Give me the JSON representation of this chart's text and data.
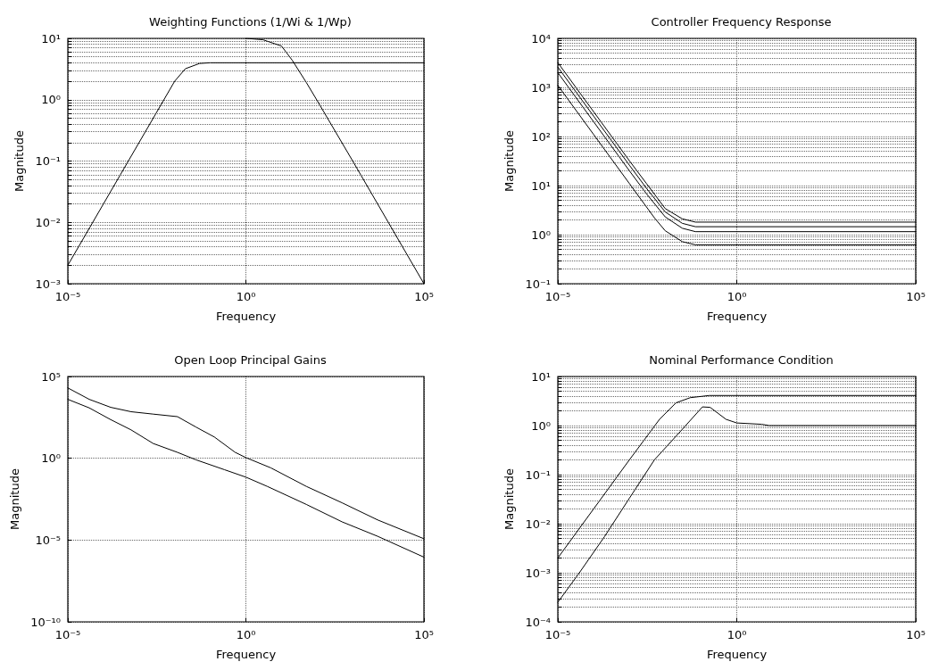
{
  "chart_data": [
    {
      "type": "line",
      "title": "Weighting Functions (1/Wi & 1/Wp)",
      "xlabel": "Frequency",
      "ylabel": "Magnitude",
      "log": "xy",
      "grid": true,
      "line_style": "solid",
      "xlim": [
        1e-05,
        100000.0
      ],
      "xticks": [
        {
          "value": 1e-05,
          "label": "10⁻⁵"
        },
        {
          "value": 1,
          "label": "10⁰"
        },
        {
          "value": 100000.0,
          "label": "10⁵"
        }
      ],
      "ylim": [
        0.001,
        10
      ],
      "yticks": [
        {
          "value": 0.001,
          "label": "10⁻³"
        },
        {
          "value": 0.01,
          "label": "10⁻²"
        },
        {
          "value": 0.1,
          "label": "10⁻¹"
        },
        {
          "value": 1,
          "label": "10⁰"
        },
        {
          "value": 10,
          "label": "10¹"
        }
      ],
      "series": [
        {
          "color": "#000000",
          "x": [
            1e-05,
            3e-05,
            0.0001,
            0.0003,
            0.001,
            0.003,
            0.01,
            0.02,
            0.05,
            0.1,
            100000.0
          ],
          "values": [
            0.002,
            0.006,
            0.02,
            0.06,
            0.2,
            0.6,
            2,
            3.2,
            3.9,
            4,
            4
          ]
        },
        {
          "color": "#000000",
          "x": [
            1,
            3,
            10,
            20,
            50,
            100,
            1000,
            10000,
            100000
          ],
          "values": [
            10,
            9.5,
            7.5,
            4.4,
            1.9,
            0.97,
            0.1,
            0.01,
            0.001
          ]
        }
      ]
    },
    {
      "type": "line",
      "title": "Controller Frequency Response",
      "xlabel": "Frequency",
      "ylabel": "Magnitude",
      "log": "xy",
      "grid": true,
      "line_style": "solid",
      "xlim": [
        1e-05,
        100000.0
      ],
      "xticks": [
        {
          "value": 1e-05,
          "label": "10⁻⁵"
        },
        {
          "value": 1,
          "label": "10⁰"
        },
        {
          "value": 100000.0,
          "label": "10⁵"
        }
      ],
      "ylim": [
        0.1,
        10000
      ],
      "yticks": [
        {
          "value": 0.1,
          "label": "10⁻¹"
        },
        {
          "value": 1,
          "label": "10⁰"
        },
        {
          "value": 10,
          "label": "10¹"
        },
        {
          "value": 100,
          "label": "10²"
        },
        {
          "value": 1000,
          "label": "10³"
        },
        {
          "value": 10000,
          "label": "10⁴"
        }
      ],
      "series": [
        {
          "color": "#000000",
          "x": [
            1e-05,
            0.0001,
            0.001,
            0.003,
            0.01,
            0.03,
            0.07,
            100000.0
          ],
          "values": [
            3200,
            320,
            32,
            11,
            3.4,
            2.1,
            1.8,
            1.8
          ]
        },
        {
          "color": "#000000",
          "x": [
            1e-05,
            0.0001,
            0.001,
            0.003,
            0.01,
            0.03,
            0.07,
            100000.0
          ],
          "values": [
            2600,
            260,
            26,
            8.8,
            2.9,
            1.7,
            1.45,
            1.45
          ]
        },
        {
          "color": "#000000",
          "x": [
            1e-05,
            0.0001,
            0.001,
            0.003,
            0.01,
            0.03,
            0.07,
            100000.0
          ],
          "values": [
            2000,
            200,
            20,
            6.8,
            2.3,
            1.35,
            1.15,
            1.15
          ]
        },
        {
          "color": "#000000",
          "x": [
            1e-05,
            0.0001,
            0.001,
            0.005,
            0.01,
            0.03,
            0.07,
            100000.0
          ],
          "values": [
            1100,
            110,
            11,
            2.2,
            1.2,
            0.72,
            0.62,
            0.62
          ]
        }
      ]
    },
    {
      "type": "line",
      "title": "Open Loop Principal Gains",
      "xlabel": "Frequency",
      "ylabel": "Magnitude",
      "log": "xy",
      "grid": true,
      "line_style": "solid",
      "xlim": [
        1e-05,
        100000.0
      ],
      "xticks": [
        {
          "value": 1e-05,
          "label": "10⁻⁵"
        },
        {
          "value": 1,
          "label": "10⁰"
        },
        {
          "value": 100000.0,
          "label": "10⁵"
        }
      ],
      "ylim": [
        1e-10,
        100000.0
      ],
      "yticks": [
        {
          "value": 1e-10,
          "label": "10⁻¹⁰"
        },
        {
          "value": 1e-05,
          "label": "10⁻⁵"
        },
        {
          "value": 1,
          "label": "10⁰"
        },
        {
          "value": 100000.0,
          "label": "10⁵"
        }
      ],
      "series": [
        {
          "color": "#000000",
          "x": [
            1e-05,
            4e-05,
            0.00016,
            0.0006,
            0.0025,
            0.012,
            0.04,
            0.13,
            0.5,
            1,
            5,
            50,
            500,
            5000,
            100000.0
          ],
          "values": [
            20000.0,
            4000,
            1300,
            700,
            500,
            350,
            80,
            20,
            2.3,
            1.1,
            0.26,
            0.019,
            0.0019,
            0.00017,
            1.2e-05
          ]
        },
        {
          "color": "#000000",
          "x": [
            1e-05,
            4e-05,
            0.00016,
            0.0006,
            0.0025,
            0.012,
            0.04,
            0.25,
            1,
            4,
            50,
            500,
            5000,
            100000.0
          ],
          "values": [
            4000,
            1200,
            230,
            54,
            8,
            2.3,
            0.8,
            0.2,
            0.07,
            0.019,
            0.0015,
            0.00013,
            1.7e-05,
            9e-07
          ]
        }
      ]
    },
    {
      "type": "line",
      "title": "Nominal Performance Condition",
      "xlabel": "Frequency",
      "ylabel": "Magnitude",
      "log": "xy",
      "grid": true,
      "line_style": "solid",
      "xlim": [
        1e-05,
        100000.0
      ],
      "xticks": [
        {
          "value": 1e-05,
          "label": "10⁻⁵"
        },
        {
          "value": 1,
          "label": "10⁰"
        },
        {
          "value": 100000.0,
          "label": "10⁵"
        }
      ],
      "ylim": [
        0.0001,
        10
      ],
      "yticks": [
        {
          "value": 0.0001,
          "label": "10⁻⁴"
        },
        {
          "value": 0.001,
          "label": "10⁻³"
        },
        {
          "value": 0.01,
          "label": "10⁻²"
        },
        {
          "value": 0.1,
          "label": "10⁻¹"
        },
        {
          "value": 1,
          "label": "10⁰"
        },
        {
          "value": 10,
          "label": "10¹"
        }
      ],
      "series": [
        {
          "color": "#000000",
          "x": [
            1e-05,
            0.0001,
            0.001,
            0.007,
            0.02,
            0.05,
            0.17,
            100000.0
          ],
          "values": [
            0.002,
            0.02,
            0.2,
            1.35,
            2.9,
            3.7,
            4.1,
            4.1
          ]
        },
        {
          "color": "#000000",
          "x": [
            1e-05,
            4e-05,
            0.0002,
            0.001,
            0.005,
            0.024,
            0.11,
            0.18,
            0.5,
            1,
            5,
            8,
            100000.0
          ],
          "values": [
            0.00025,
            0.001,
            0.0054,
            0.033,
            0.2,
            0.7,
            2.4,
            2.35,
            1.34,
            1.13,
            1.06,
            1.0,
            1.0
          ]
        }
      ]
    }
  ]
}
